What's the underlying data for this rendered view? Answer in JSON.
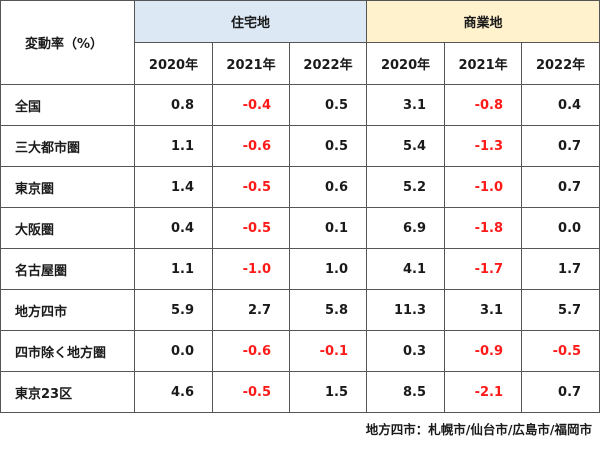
{
  "table": {
    "corner_label": "変動率（%）",
    "groups": [
      {
        "label": "住宅地",
        "color": "#dce9f5"
      },
      {
        "label": "商業地",
        "color": "#fff2cc"
      }
    ],
    "years": [
      "2020年",
      "2021年",
      "2022年",
      "2020年",
      "2021年",
      "2022年"
    ],
    "rows": [
      {
        "label": "全国",
        "values": [
          "0.8",
          "-0.4",
          "0.5",
          "3.1",
          "-0.8",
          "0.4"
        ]
      },
      {
        "label": "三大都市圏",
        "values": [
          "1.1",
          "-0.6",
          "0.5",
          "5.4",
          "-1.3",
          "0.7"
        ]
      },
      {
        "label": "東京圏",
        "values": [
          "1.4",
          "-0.5",
          "0.6",
          "5.2",
          "-1.0",
          "0.7"
        ]
      },
      {
        "label": "大阪圏",
        "values": [
          "0.4",
          "-0.5",
          "0.1",
          "6.9",
          "-1.8",
          "0.0"
        ]
      },
      {
        "label": "名古屋圏",
        "values": [
          "1.1",
          "-1.0",
          "1.0",
          "4.1",
          "-1.7",
          "1.7"
        ]
      },
      {
        "label": "地方四市",
        "values": [
          "5.9",
          "2.7",
          "5.8",
          "11.3",
          "3.1",
          "5.7"
        ]
      },
      {
        "label": "四市除く地方圏",
        "values": [
          "0.0",
          "-0.6",
          "-0.1",
          "0.3",
          "-0.9",
          "-0.5"
        ]
      },
      {
        "label": "東京23区",
        "values": [
          "4.6",
          "-0.5",
          "1.5",
          "8.5",
          "-2.1",
          "0.7"
        ]
      }
    ],
    "negative_color": "#ff1a1a"
  },
  "footnote": "地方四市：札幌市/仙台市/広島市/福岡市"
}
